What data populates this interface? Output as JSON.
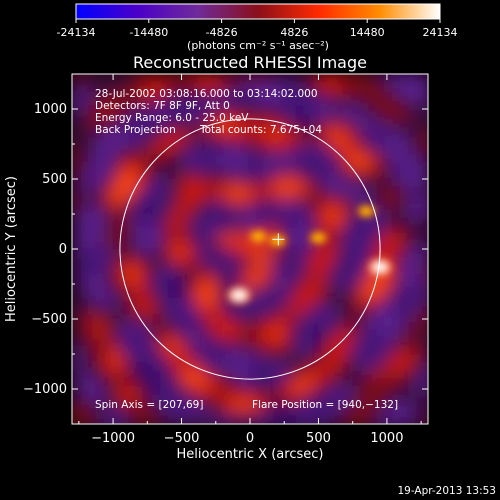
{
  "colorbar": {
    "ticks": [
      -24134,
      -14480,
      -4826,
      4826,
      14480,
      24134
    ],
    "tick_labels": [
      "-24134",
      "-14480",
      "-4826",
      "4826",
      "14480",
      "24134"
    ],
    "units": "(photons cm⁻² s⁻¹ asec⁻²)",
    "colors": [
      "#0000ff",
      "#4a00c8",
      "#6f2a9a",
      "#8a0f1a",
      "#ff2a00",
      "#ff8c00",
      "#ffffff"
    ]
  },
  "chart_data": {
    "type": "heatmap",
    "title": "Reconstructed RHESSI Image",
    "xlabel": "Heliocentric X (arcsec)",
    "ylabel": "Heliocentric Y (arcsec)",
    "xlim": [
      -1300,
      1300
    ],
    "ylim": [
      -1250,
      1250
    ],
    "x_ticks": [
      -1000,
      -500,
      0,
      500,
      1000
    ],
    "y_ticks": [
      -1000,
      -500,
      0,
      500,
      1000
    ],
    "x_tick_labels": [
      "−1000",
      "−500",
      "0",
      "500",
      "1000"
    ],
    "y_tick_labels": [
      "−1000",
      "−500",
      "0",
      "500",
      "1000"
    ],
    "solar_disk": {
      "center": [
        0,
        0
      ],
      "radius": 950
    },
    "spin_axis": [
      207,
      69
    ],
    "flare_position": [
      940,
      -132
    ],
    "bright_sources": [
      {
        "x": -80,
        "y": -330,
        "level": "bright"
      },
      {
        "x": 950,
        "y": -130,
        "level": "bright"
      },
      {
        "x": 60,
        "y": 90,
        "level": "medium"
      },
      {
        "x": 200,
        "y": 60,
        "level": "medium"
      },
      {
        "x": 500,
        "y": 80,
        "level": "medium"
      },
      {
        "x": 850,
        "y": 270,
        "level": "medium"
      }
    ]
  },
  "annotations": {
    "time_range": "28-Jul-2002 03:08:16.000 to 03:14:02.000",
    "detectors": "Detectors: 7F 8F 9F, Att 0",
    "energy_range": "Energy Range: 6.0 - 25.0 keV",
    "method": "Back Projection",
    "total_counts": "Total counts: 7.675+04",
    "spin_axis_label": "Spin Axis = [207,69]",
    "flare_position_label": "Flare Position = [940,−132]",
    "footer_date": "19-Apr-2013 13:53"
  }
}
